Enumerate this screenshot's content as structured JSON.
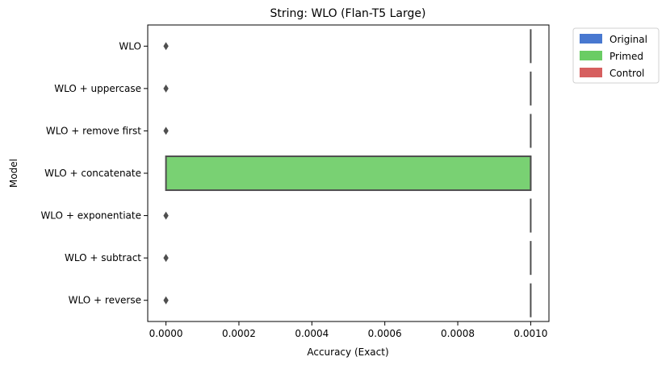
{
  "chart_data": {
    "type": "boxplot",
    "title": "String: WLO (Flan-T5 Large)",
    "xlabel": "Accuracy (Exact)",
    "ylabel": "Model",
    "xlim": [
      -5e-05,
      0.00105
    ],
    "x_ticks": [
      "0.0000",
      "0.0002",
      "0.0004",
      "0.0006",
      "0.0008",
      "0.0010"
    ],
    "x_tick_values": [
      0,
      0.0002,
      0.0004,
      0.0006,
      0.0008,
      0.001
    ],
    "grid": false,
    "legend_position": "outside-top-right",
    "legend": [
      {
        "name": "Original",
        "color": "#4878d0"
      },
      {
        "name": "Primed",
        "color": "#6acc64"
      },
      {
        "name": "Control",
        "color": "#d65f5f"
      }
    ],
    "categories": [
      "WLO",
      "WLO + uppercase",
      "WLO + remove first",
      "WLO + concatenate",
      "WLO + exponentiate",
      "WLO + subtract",
      "WLO + reverse"
    ],
    "boxes": [
      {
        "category": "WLO",
        "q1": 0.001,
        "median": 0.001,
        "q3": 0.001,
        "outliers": [
          0.0
        ],
        "color": "#6acc64"
      },
      {
        "category": "WLO + uppercase",
        "q1": 0.001,
        "median": 0.001,
        "q3": 0.001,
        "outliers": [
          0.0
        ],
        "color": "#6acc64"
      },
      {
        "category": "WLO + remove first",
        "q1": 0.001,
        "median": 0.001,
        "q3": 0.001,
        "outliers": [
          0.0
        ],
        "color": "#6acc64"
      },
      {
        "category": "WLO + concatenate",
        "q1": 0.0,
        "median": 0.001,
        "q3": 0.001,
        "outliers": [],
        "color": "#6acc64"
      },
      {
        "category": "WLO + exponentiate",
        "q1": 0.001,
        "median": 0.001,
        "q3": 0.001,
        "outliers": [
          0.0
        ],
        "color": "#6acc64"
      },
      {
        "category": "WLO + subtract",
        "q1": 0.001,
        "median": 0.001,
        "q3": 0.001,
        "outliers": [
          0.0
        ],
        "color": "#6acc64"
      },
      {
        "category": "WLO + reverse",
        "q1": 0.001,
        "median": 0.001,
        "q3": 0.001,
        "outliers": [
          0.0
        ],
        "color": "#6acc64"
      }
    ]
  }
}
